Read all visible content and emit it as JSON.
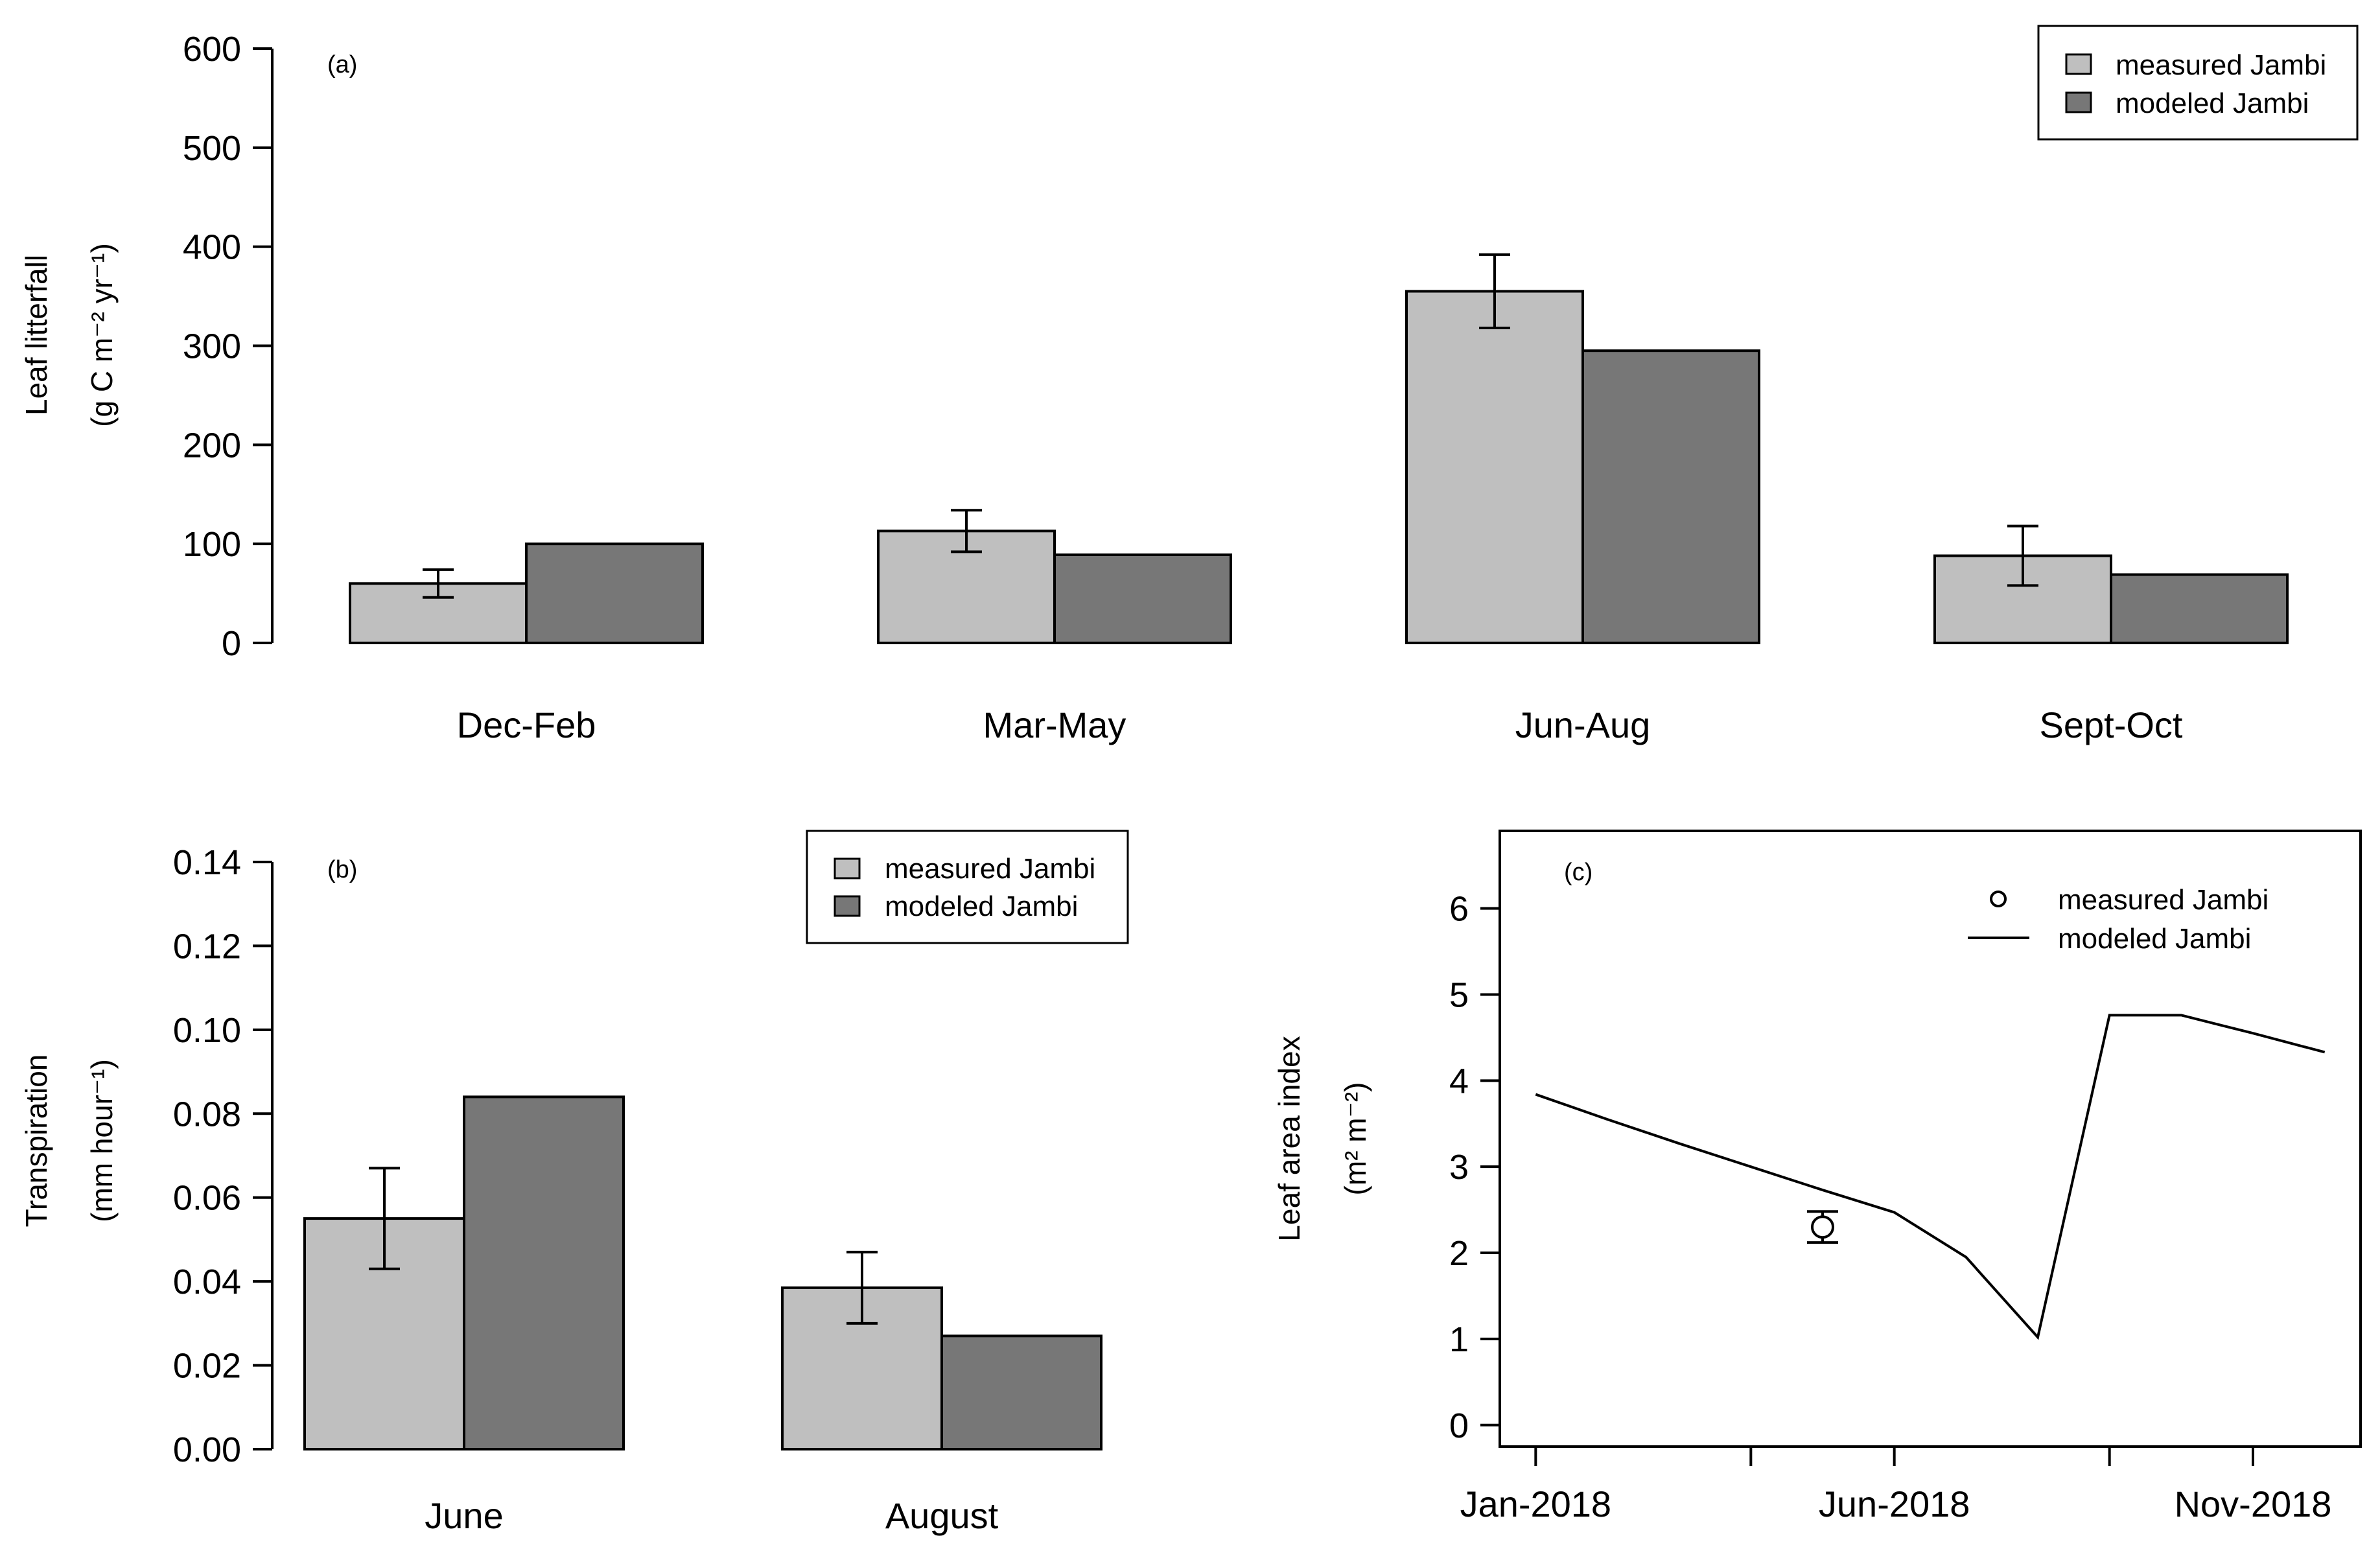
{
  "colors": {
    "measured": "#bfbfbf",
    "modeled": "#777777",
    "axis": "#000000"
  },
  "chart_data": [
    {
      "type": "bar",
      "panel": "(a)",
      "categories": [
        "Dec-Feb",
        "Mar-May",
        "Jun-Aug",
        "Sept-Oct"
      ],
      "series": [
        {
          "name": "measured Jambi",
          "values": [
            60,
            113,
            355,
            88
          ],
          "error": [
            14,
            21,
            37,
            30
          ]
        },
        {
          "name": "modeled Jambi",
          "values": [
            100,
            89,
            295,
            69
          ]
        }
      ],
      "ylabel_line1": "Leaf litterfall",
      "ylabel_line2": "(g C m⁻² yr⁻¹)",
      "ylim": [
        0,
        600
      ],
      "yticks": [
        0,
        100,
        200,
        300,
        400,
        500,
        600
      ],
      "ytick_labels": [
        "0",
        "100",
        "200",
        "300",
        "400",
        "500",
        "600"
      ],
      "legend": [
        "measured Jambi",
        "modeled Jambi"
      ],
      "legend_position": "top-right"
    },
    {
      "type": "bar",
      "panel": "(b)",
      "categories": [
        "June",
        "August"
      ],
      "series": [
        {
          "name": "measured Jambi",
          "values": [
            0.055,
            0.0385
          ],
          "error": [
            0.012,
            0.0085
          ]
        },
        {
          "name": "modeled Jambi",
          "values": [
            0.084,
            0.027
          ]
        }
      ],
      "ylabel_line1": "Transpiration",
      "ylabel_line2": "(mm hour⁻¹)",
      "ylim": [
        0,
        0.14
      ],
      "yticks": [
        0,
        0.02,
        0.04,
        0.06,
        0.08,
        0.1,
        0.12,
        0.14
      ],
      "ytick_labels": [
        "0.00",
        "0.02",
        "0.04",
        "0.06",
        "0.08",
        "0.10",
        "0.12",
        "0.14"
      ],
      "legend": [
        "measured Jambi",
        "modeled Jambi"
      ],
      "legend_position": "top-right"
    },
    {
      "type": "line",
      "panel": "(c)",
      "ylabel_line1": "Leaf area index",
      "ylabel_line2": "(m² m⁻²)",
      "xlim": [
        -0.5,
        11.5
      ],
      "ylim": [
        -0.25,
        6.9
      ],
      "yticks": [
        0,
        1,
        2,
        3,
        4,
        5,
        6
      ],
      "ytick_labels": [
        "0",
        "1",
        "2",
        "3",
        "4",
        "5",
        "6"
      ],
      "xticks": [
        0,
        3,
        5,
        8,
        10
      ],
      "xtick_labels": [
        "Jan-2018",
        "Jun-2018",
        "Nov-2018"
      ],
      "xtick_label_positions": [
        0,
        5,
        10
      ],
      "series": [
        {
          "name": "modeled Jambi",
          "x": [
            0,
            1,
            2,
            3,
            4,
            5,
            6,
            7,
            8,
            9,
            10,
            11
          ],
          "y": [
            3.84,
            3.55,
            3.27,
            3.0,
            2.73,
            2.47,
            1.95,
            1.02,
            4.76,
            4.76,
            4.55,
            4.33
          ]
        },
        {
          "name": "measured Jambi",
          "x": [
            4
          ],
          "y": [
            2.3
          ],
          "error": [
            0.18
          ]
        }
      ],
      "legend": [
        "measured Jambi",
        "modeled Jambi"
      ],
      "legend_position": "top-right"
    }
  ]
}
